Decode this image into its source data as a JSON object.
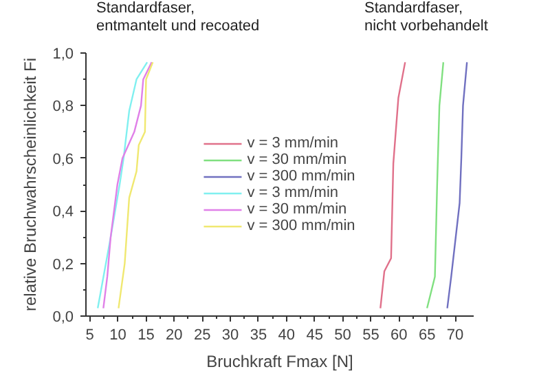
{
  "chart_data": {
    "type": "line",
    "xlabel": "Bruchkraft Fmax [N]",
    "ylabel": "relative Bruchwahrscheinlichkeit Fi",
    "annotations": [
      "Standardfaser,\nentmantelt und recoated",
      "Standardfaser,\nnicht vorbehandelt"
    ],
    "xlim": [
      4.3,
      73.3
    ],
    "ylim": [
      0,
      1
    ],
    "xticks": [
      5,
      10,
      15,
      20,
      25,
      30,
      35,
      40,
      45,
      50,
      55,
      60,
      65,
      70
    ],
    "yticks": [
      {
        "value": 0,
        "label": "0,0"
      },
      {
        "value": 0.2,
        "label": "0,2"
      },
      {
        "value": 0.4,
        "label": "0,4"
      },
      {
        "value": 0.6,
        "label": "0,6"
      },
      {
        "value": 0.8,
        "label": "0,8"
      },
      {
        "value": 1,
        "label": "1,0"
      }
    ],
    "legend": "center",
    "grid": false,
    "line_style": "solid",
    "series": [
      {
        "name": "v = 3 mm/min",
        "color": "#e0708a",
        "x": [
          56.7,
          57.4,
          58.6,
          59.0,
          59.9,
          61.1
        ],
        "values": [
          0.03,
          0.17,
          0.22,
          0.58,
          0.83,
          0.965
        ]
      },
      {
        "name": "v = 30 mm/min",
        "color": "#80e080",
        "x": [
          65.0,
          66.4,
          66.8,
          67.2,
          67.9
        ],
        "values": [
          0.03,
          0.15,
          0.5,
          0.8,
          0.965
        ]
      },
      {
        "name": "v = 300 mm/min",
        "color": "#7070c0",
        "x": [
          68.6,
          69.3,
          70.8,
          71.1,
          71.4,
          72.1
        ],
        "values": [
          0.03,
          0.15,
          0.43,
          0.6,
          0.8,
          0.965
        ]
      },
      {
        "name": "v = 3 mm/min",
        "color": "#80f0f0",
        "x": [
          6.4,
          7.0,
          8.7,
          10.3,
          11.0,
          12.0,
          13.3,
          15.2
        ],
        "values": [
          0.03,
          0.1,
          0.3,
          0.5,
          0.6,
          0.78,
          0.9,
          0.965
        ]
      },
      {
        "name": "v = 30 mm/min",
        "color": "#e080e8",
        "x": [
          7.4,
          8.1,
          8.7,
          9.9,
          10.8,
          12.9,
          14.1,
          14.5,
          16.0
        ],
        "values": [
          0.03,
          0.15,
          0.3,
          0.5,
          0.6,
          0.7,
          0.8,
          0.9,
          0.965
        ]
      },
      {
        "name": "v = 300 mm/min",
        "color": "#f0e870",
        "x": [
          10.1,
          11.2,
          12.0,
          13.3,
          13.7,
          14.8,
          15.0,
          16.2
        ],
        "values": [
          0.03,
          0.2,
          0.45,
          0.55,
          0.65,
          0.7,
          0.9,
          0.965
        ]
      }
    ]
  }
}
